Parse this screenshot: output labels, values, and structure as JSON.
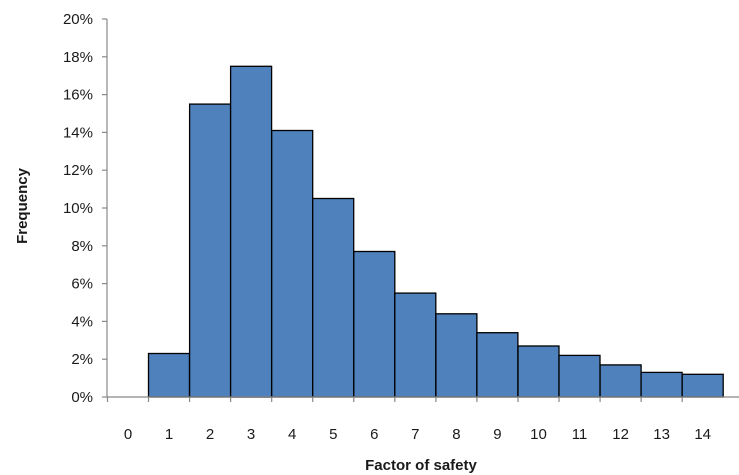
{
  "chart_data": {
    "type": "bar",
    "title": "",
    "xlabel": "Factor of safety",
    "ylabel": "Frequency",
    "categories": [
      "0",
      "1",
      "2",
      "3",
      "4",
      "5",
      "6",
      "7",
      "8",
      "9",
      "10",
      "11",
      "12",
      "13",
      "14"
    ],
    "values": [
      0,
      2.3,
      15.5,
      17.5,
      14.1,
      10.5,
      7.7,
      5.5,
      4.4,
      3.4,
      2.7,
      2.2,
      1.7,
      1.3,
      1.2
    ],
    "y_ticks": [
      "0%",
      "2%",
      "4%",
      "6%",
      "8%",
      "10%",
      "12%",
      "14%",
      "16%",
      "18%",
      "20%"
    ],
    "ylim": [
      0,
      20
    ],
    "y_unit": "%",
    "grid": false,
    "legend": "none",
    "bar_color": "#4f81bd",
    "bar_edge_color": "#000000"
  }
}
